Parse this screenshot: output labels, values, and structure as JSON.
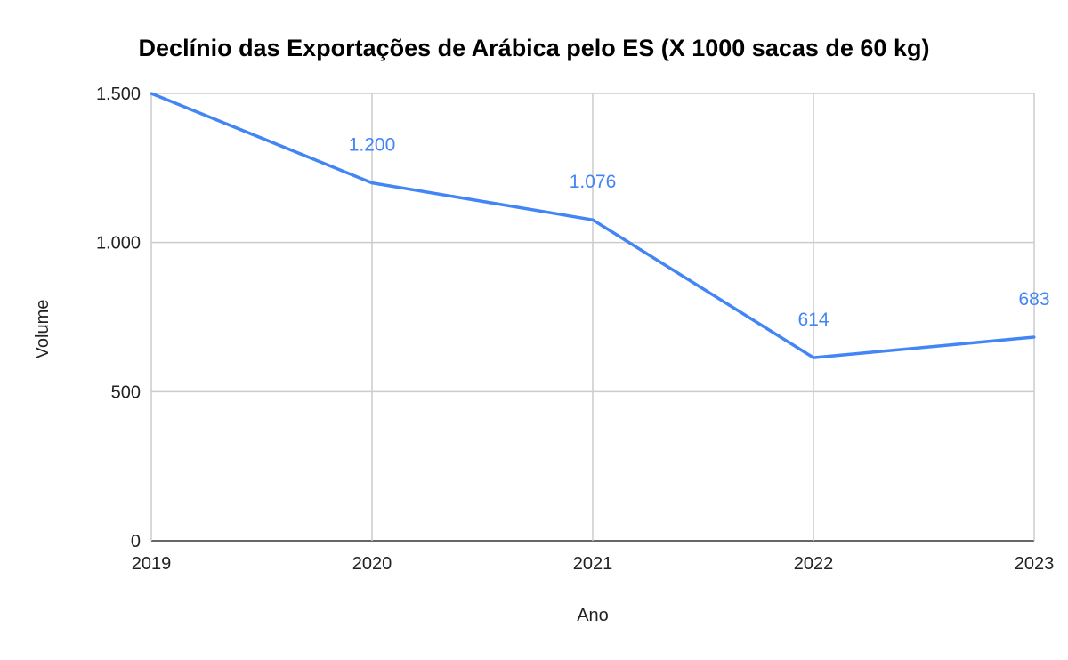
{
  "chart_data": {
    "type": "line",
    "title": "Declínio das Exportações de Arábica pelo ES (X 1000 sacas de 60 kg)",
    "xlabel": "Ano",
    "ylabel": "Volume",
    "categories": [
      "2019",
      "2020",
      "2021",
      "2022",
      "2023"
    ],
    "series": [
      {
        "name": "Volume",
        "values": [
          1500,
          1200,
          1076,
          614,
          683
        ],
        "color": "#4285f4"
      }
    ],
    "data_labels": [
      "",
      "1.200",
      "1.076",
      "614",
      "683"
    ],
    "ylim": [
      0,
      1500
    ],
    "yticks": [
      0,
      500,
      1000,
      1500
    ],
    "ytick_labels": [
      "0",
      "500",
      "1.000",
      "1.500"
    ],
    "grid": true,
    "legend": "none"
  }
}
